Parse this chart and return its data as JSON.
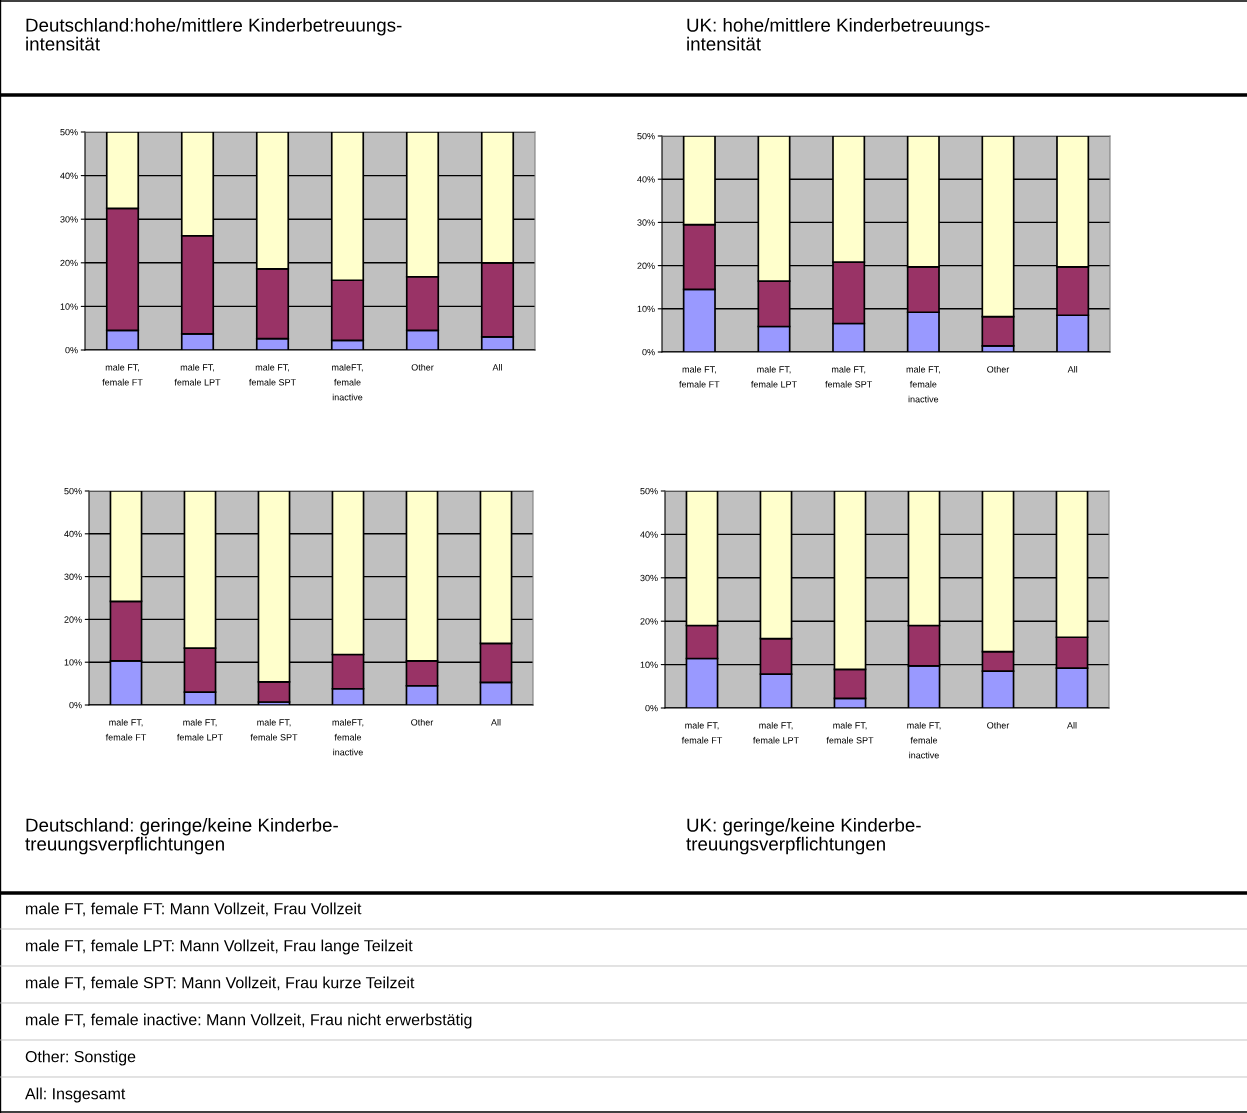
{
  "chart_data": [
    {
      "type": "bar",
      "stacked": true,
      "title": "Deutschland:hohe/mittlere Kinderbetreuungs-\nintensität",
      "categories": [
        "male FT,\nfemale FT",
        "male FT,\nfemale LPT",
        "male FT,\nfemale SPT",
        "maleFT,\nfemale\ninactive",
        "Other",
        "All"
      ],
      "series": [
        {
          "color": "#9999ff",
          "values": [
            4.5,
            3.7,
            2.6,
            2.2,
            4.5,
            3.0
          ]
        },
        {
          "color": "#993366",
          "values": [
            28.0,
            22.5,
            16.0,
            13.8,
            12.3,
            17.0
          ]
        },
        {
          "color": "#ffffcc",
          "values": [
            17.5,
            23.8,
            31.4,
            34.0,
            33.2,
            30.0
          ]
        }
      ],
      "ylim": [
        0,
        50
      ],
      "yticks": [
        {
          "value": 0,
          "label": "0%"
        },
        {
          "value": 10,
          "label": "10%"
        },
        {
          "value": 20,
          "label": "20%"
        },
        {
          "value": 30,
          "label": "30%"
        },
        {
          "value": 40,
          "label": "40%"
        },
        {
          "value": 50,
          "label": "50%"
        }
      ],
      "grid": "y",
      "legend": false
    },
    {
      "type": "bar",
      "stacked": true,
      "title": "UK: hohe/mittlere Kinderbetreuungs-\nintensität",
      "categories": [
        "male FT,\nfemale FT",
        "male FT,\nfemale LPT",
        "male FT,\nfemale SPT",
        "male FT,\nfemale\ninactive",
        "Other",
        "All"
      ],
      "series": [
        {
          "color": "#9999ff",
          "values": [
            14.5,
            5.9,
            6.6,
            9.2,
            1.4,
            8.5
          ]
        },
        {
          "color": "#993366",
          "values": [
            15.0,
            10.5,
            14.2,
            10.5,
            6.8,
            11.2
          ]
        },
        {
          "color": "#ffffcc",
          "values": [
            20.5,
            33.6,
            29.2,
            30.3,
            41.8,
            30.3
          ]
        }
      ],
      "ylim": [
        0,
        50
      ],
      "yticks": [
        {
          "value": 0,
          "label": "0%"
        },
        {
          "value": 10,
          "label": "10%"
        },
        {
          "value": 20,
          "label": "20%"
        },
        {
          "value": 30,
          "label": "30%"
        },
        {
          "value": 40,
          "label": "40%"
        },
        {
          "value": 50,
          "label": "50%"
        }
      ],
      "grid": "y",
      "legend": false
    },
    {
      "type": "bar",
      "stacked": true,
      "title": "Deutschland: geringe/keine Kinderbe-\ntreuungsverpflichtungen",
      "categories": [
        "male FT,\nfemale FT",
        "male FT,\nfemale LPT",
        "male FT,\nfemale SPT",
        "maleFT,\nfemale\ninactive",
        "Other",
        "All"
      ],
      "series": [
        {
          "color": "#9999ff",
          "values": [
            10.3,
            3.0,
            0.7,
            3.8,
            4.5,
            5.3
          ]
        },
        {
          "color": "#993366",
          "values": [
            13.9,
            10.3,
            4.7,
            8.0,
            5.8,
            9.1
          ]
        },
        {
          "color": "#ffffcc",
          "values": [
            25.8,
            36.7,
            44.6,
            38.2,
            39.7,
            35.6
          ]
        }
      ],
      "ylim": [
        0,
        50
      ],
      "yticks": [
        {
          "value": 0,
          "label": "0%"
        },
        {
          "value": 10,
          "label": "10%"
        },
        {
          "value": 20,
          "label": "20%"
        },
        {
          "value": 30,
          "label": "30%"
        },
        {
          "value": 40,
          "label": "40%"
        },
        {
          "value": 50,
          "label": "50%"
        }
      ],
      "grid": "y",
      "legend": false,
      "annotations": [
        "male FT, female FT: Mann Vollzeit, Frau Vollzeit",
        "male FT, female LPT: Mann Vollzeit, Frau lange Teilzeit",
        "male FT, female SPT: Mann Vollzeit, Frau kurze Teilzeit",
        "male FT, female inactive: Mann Vollzeit, Frau nicht erwerbstätig",
        "Other: Sonstige",
        "All: Insgesamt"
      ]
    },
    {
      "type": "bar",
      "stacked": true,
      "title": "UK: geringe/keine Kinderbe-\ntreuungsverpflichtungen",
      "categories": [
        "male FT,\nfemale FT",
        "male FT,\nfemale LPT",
        "male FT,\nfemale SPT",
        "male FT,\nfemale\ninactive",
        "Other",
        "All"
      ],
      "series": [
        {
          "color": "#9999ff",
          "values": [
            11.4,
            7.8,
            2.2,
            9.7,
            8.5,
            9.2
          ]
        },
        {
          "color": "#993366",
          "values": [
            7.6,
            8.2,
            6.7,
            9.3,
            4.5,
            7.1
          ]
        },
        {
          "color": "#ffffcc",
          "values": [
            31.0,
            34.0,
            41.1,
            31.0,
            37.0,
            33.7
          ]
        }
      ],
      "ylim": [
        0,
        50
      ],
      "yticks": [
        {
          "value": 0,
          "label": "0%"
        },
        {
          "value": 10,
          "label": "10%"
        },
        {
          "value": 20,
          "label": "20%"
        },
        {
          "value": 30,
          "label": "30%"
        },
        {
          "value": 40,
          "label": "40%"
        },
        {
          "value": 50,
          "label": "50%"
        }
      ],
      "grid": "y",
      "legend": false
    }
  ]
}
